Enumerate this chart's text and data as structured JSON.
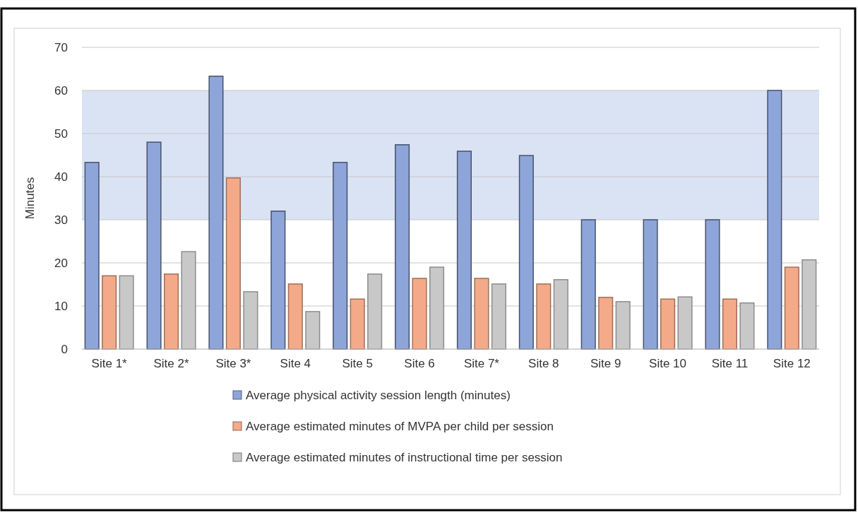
{
  "chart_data": {
    "type": "bar",
    "ylabel": "Minutes",
    "categories": [
      "Site 1*",
      "Site 2*",
      "Site 3*",
      "Site 4",
      "Site 5",
      "Site 6",
      "Site 7*",
      "Site 8",
      "Site 9",
      "Site 10",
      "Site 11",
      "Site 12"
    ],
    "series": [
      {
        "name": "Average physical activity session length (minutes)",
        "color": "#8ea5da",
        "values": [
          43.3,
          48.0,
          63.3,
          32.0,
          43.3,
          47.4,
          45.9,
          44.9,
          30,
          30,
          30,
          60
        ]
      },
      {
        "name": "Average estimated minutes of MVPA per child per session",
        "color": "#f4aa88",
        "values": [
          17.0,
          17.4,
          39.7,
          15.1,
          11.6,
          16.4,
          16.4,
          15.1,
          12.0,
          11.6,
          11.6,
          19.0
        ]
      },
      {
        "name": "Average estimated minutes of instructional time per session",
        "color": "#c8c8c8",
        "values": [
          17.0,
          22.6,
          13.3,
          8.7,
          17.4,
          19.0,
          15.1,
          16.1,
          11.0,
          12.1,
          10.7,
          20.7
        ]
      }
    ],
    "ylim": [
      0,
      70
    ],
    "yticks": [
      0,
      10,
      20,
      30,
      40,
      50,
      60,
      70
    ],
    "grid": "y",
    "legend": "bottom",
    "bands": [
      {
        "axis": "y",
        "from": 30,
        "to": 60,
        "color": "#dae3f3"
      }
    ]
  }
}
